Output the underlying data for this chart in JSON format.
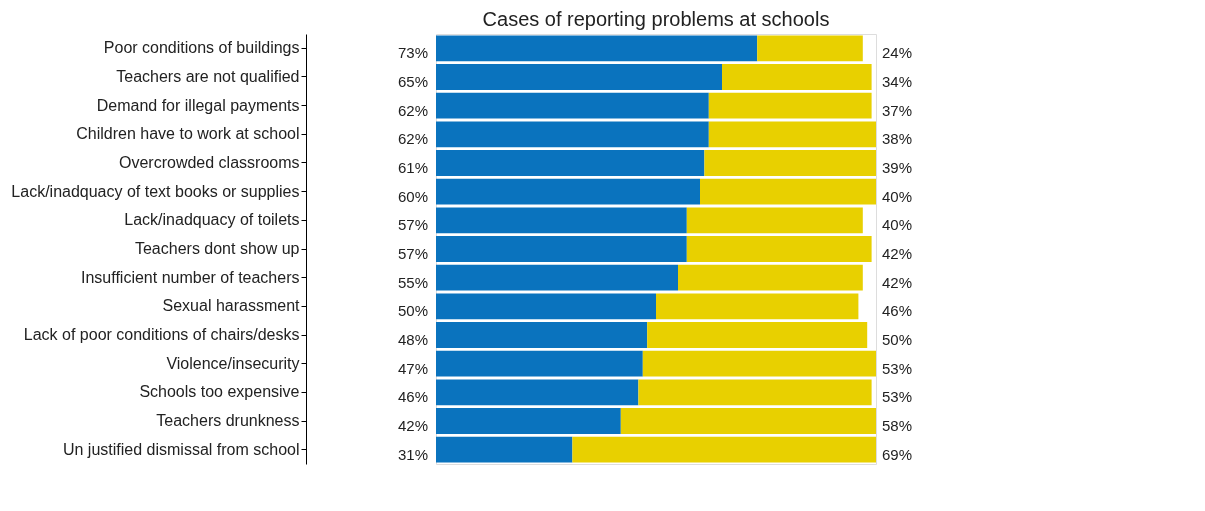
{
  "chart_data": {
    "type": "bar",
    "orientation": "horizontal",
    "stacked": true,
    "title": "Cases of reporting problems at schools",
    "categories": [
      "Poor conditions of buildings",
      "Teachers are not qualified",
      "Demand for illegal payments",
      "Children have to work at school",
      "Overcrowded classrooms",
      "Lack/inadquacy of text books or supplies",
      "Lack/inadquacy of toilets",
      "Teachers dont show up",
      "Insufficient number of teachers",
      "Sexual harassment",
      "Lack of poor conditions of chairs/desks",
      "Violence/insecurity",
      "Schools too expensive",
      "Teachers drunkness",
      "Un justified dismissal from school"
    ],
    "series": [
      {
        "color": "#0a73be",
        "values": [
          73,
          65,
          62,
          62,
          61,
          60,
          57,
          57,
          55,
          50,
          48,
          47,
          46,
          42,
          31
        ],
        "value_labels": [
          "73%",
          "65%",
          "62%",
          "62%",
          "61%",
          "60%",
          "57%",
          "57%",
          "55%",
          "50%",
          "48%",
          "47%",
          "46%",
          "42%",
          "31%"
        ]
      },
      {
        "color": "#e8d000",
        "values": [
          24,
          34,
          37,
          38,
          39,
          40,
          40,
          42,
          42,
          46,
          50,
          53,
          53,
          58,
          69
        ],
        "value_labels": [
          "24%",
          "34%",
          "37%",
          "38%",
          "39%",
          "40%",
          "40%",
          "42%",
          "42%",
          "46%",
          "50%",
          "53%",
          "53%",
          "58%",
          "69%"
        ]
      }
    ]
  }
}
